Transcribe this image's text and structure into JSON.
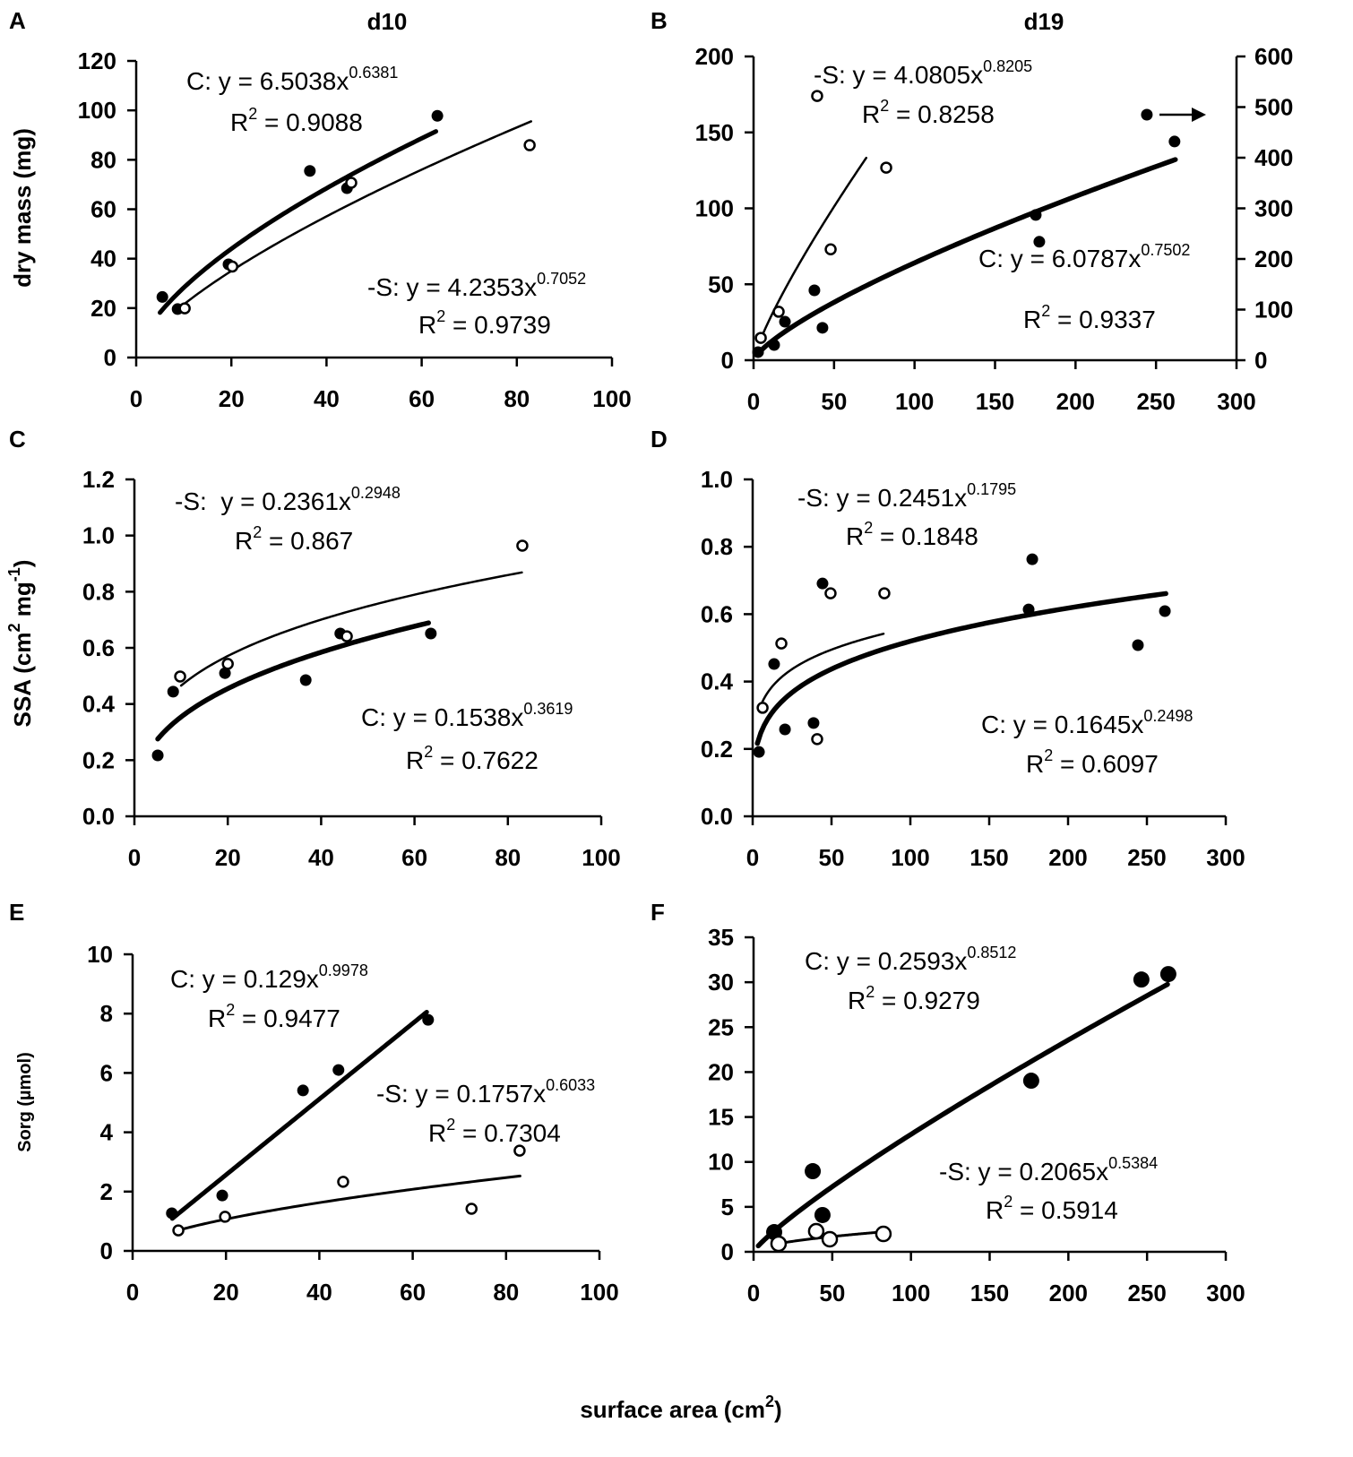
{
  "figure": {
    "xlabel": [
      {
        "text": "surface area (cm"
      },
      {
        "text": "2",
        "sup": true
      },
      {
        "text": ")"
      }
    ],
    "r_symbol": "R",
    "r_sup": "2"
  },
  "chart_data": [
    {
      "panel": "A",
      "title": "d10",
      "type": "scatter",
      "ylabel": [
        {
          "text": "dry mass (mg)"
        }
      ],
      "xlim": [
        0,
        100
      ],
      "ylim": [
        0,
        120
      ],
      "xticks": [
        0,
        20,
        40,
        60,
        80,
        100
      ],
      "xtick_labels": [
        "0",
        "20",
        "40",
        "60",
        "80",
        "100"
      ],
      "yticks": [
        0,
        20,
        40,
        60,
        80,
        100,
        120
      ],
      "ytick_labels": [
        "0",
        "20",
        "40",
        "60",
        "80",
        "100",
        "120"
      ],
      "series": [
        {
          "name": "C",
          "hollow": false,
          "points": [
            [
              5.5,
              24.5
            ],
            [
              8.7,
              19.6
            ],
            [
              19.4,
              37.7
            ],
            [
              36.5,
              75.5
            ],
            [
              44.3,
              68.5
            ],
            [
              63.3,
              97.8
            ]
          ],
          "fit": {
            "a": 6.5038,
            "b": 0.6381,
            "x_range": [
              5,
              63
            ],
            "equation": ": y = 6.5038x",
            "exponent": "0.6381",
            "r2": " = 0.9088"
          }
        },
        {
          "name": "-S",
          "hollow": true,
          "points": [
            [
              10.2,
              19.9
            ],
            [
              20.2,
              36.8
            ],
            [
              45.2,
              70.7
            ],
            [
              82.7,
              85.9
            ]
          ],
          "fit": {
            "a": 4.2353,
            "b": 0.7052,
            "x_range": [
              10,
              83
            ],
            "equation": ": y = 4.2353x",
            "exponent": "0.7052",
            "r2": " = 0.9739"
          }
        }
      ]
    },
    {
      "panel": "B",
      "title": "d19",
      "type": "scatter",
      "xlim": [
        0,
        300
      ],
      "ylim": [
        0,
        200
      ],
      "y2lim": [
        0,
        600
      ],
      "xticks": [
        0,
        50,
        100,
        150,
        200,
        250,
        300
      ],
      "xtick_labels": [
        "0",
        "50",
        "100",
        "150",
        "200",
        "250",
        "300"
      ],
      "yticks": [
        0,
        50,
        100,
        150,
        200
      ],
      "ytick_labels": [
        "0",
        "50",
        "100",
        "150",
        "200"
      ],
      "y2ticks": [
        0,
        100,
        200,
        300,
        400,
        500,
        600
      ],
      "y2tick_labels": [
        "0",
        "100",
        "200",
        "300",
        "400",
        "500",
        "600"
      ],
      "series": [
        {
          "name": "C",
          "hollow": false,
          "right_axis": true,
          "points": [
            [
              2.8,
              16
            ],
            [
              12.8,
              30
            ],
            [
              19.5,
              76
            ],
            [
              37.8,
              138
            ],
            [
              42.8,
              64
            ],
            [
              175.3,
              287
            ],
            [
              177.5,
              234
            ],
            [
              244.3,
              485
            ],
            [
              261.5,
              432
            ]
          ],
          "fit": {
            "a": 6.0787,
            "b": 0.7502,
            "x_range": [
              3,
              262
            ],
            "equation": ": y = 6.0787x",
            "exponent": "0.7502",
            "r2": " = 0.9337"
          }
        },
        {
          "name": "-S",
          "hollow": true,
          "right_axis": false,
          "points": [
            [
              4.5,
              14.7
            ],
            [
              15.6,
              31.9
            ],
            [
              39.5,
              174
            ],
            [
              47.9,
              73
            ],
            [
              82.4,
              126.8
            ]
          ],
          "fit": {
            "a": 4.0805,
            "b": 0.8205,
            "x_range": [
              4,
              70
            ],
            "equation": ": y = 4.0805x",
            "exponent": "0.8205",
            "r2": " = 0.8258"
          }
        }
      ]
    },
    {
      "panel": "C",
      "type": "scatter",
      "ylabel": [
        {
          "text": "SSA (cm"
        },
        {
          "text": "2",
          "sup": true
        },
        {
          "text": " mg"
        },
        {
          "text": "-1",
          "sup": true
        },
        {
          "text": ")"
        }
      ],
      "xlim": [
        0,
        100
      ],
      "ylim": [
        0,
        1.2
      ],
      "xticks": [
        0,
        20,
        40,
        60,
        80,
        100
      ],
      "xtick_labels": [
        "0",
        "20",
        "40",
        "60",
        "80",
        "100"
      ],
      "yticks": [
        0,
        0.2,
        0.4,
        0.6,
        0.8,
        1.0,
        1.2
      ],
      "ytick_labels": [
        "0.0",
        "0.2",
        "0.4",
        "0.6",
        "0.8",
        "1.0",
        "1.2"
      ],
      "series": [
        {
          "name": "C",
          "hollow": false,
          "points": [
            [
              5,
              0.217
            ],
            [
              8.3,
              0.444
            ],
            [
              19.4,
              0.51
            ],
            [
              36.7,
              0.485
            ],
            [
              44.1,
              0.651
            ],
            [
              63.5,
              0.651
            ]
          ],
          "fit": {
            "a": 0.1538,
            "b": 0.3619,
            "x_range": [
              5,
              63
            ],
            "equation": ": y = 0.1538x",
            "exponent": "0.3619",
            "r2": " = 0.7622"
          }
        },
        {
          "name": "-S",
          "hollow": true,
          "points": [
            [
              9.8,
              0.498
            ],
            [
              20,
              0.543
            ],
            [
              45.5,
              0.641
            ],
            [
              83.1,
              0.964
            ]
          ],
          "fit": {
            "a": 0.2361,
            "b": 0.2948,
            "x_range": [
              10,
              83
            ],
            "equation": ":  y = 0.2361x",
            "exponent": "0.2948",
            "r2": " = 0.867"
          }
        }
      ]
    },
    {
      "panel": "D",
      "type": "scatter",
      "xlim": [
        0,
        300
      ],
      "ylim": [
        0,
        1.0
      ],
      "xticks": [
        0,
        50,
        100,
        150,
        200,
        250,
        300
      ],
      "xtick_labels": [
        "0",
        "50",
        "100",
        "150",
        "200",
        "250",
        "300"
      ],
      "yticks": [
        0,
        0.2,
        0.4,
        0.6,
        0.8,
        1.0
      ],
      "ytick_labels": [
        "0.0",
        "0.2",
        "0.4",
        "0.6",
        "0.8",
        "1.0"
      ],
      "series": [
        {
          "name": "C",
          "hollow": false,
          "points": [
            [
              4,
              0.191
            ],
            [
              13.6,
              0.452
            ],
            [
              20.5,
              0.258
            ],
            [
              38.6,
              0.277
            ],
            [
              44.3,
              0.691
            ],
            [
              175,
              0.614
            ],
            [
              177.3,
              0.763
            ],
            [
              244.3,
              0.508
            ],
            [
              261.4,
              0.609
            ]
          ],
          "fit": {
            "a": 0.1645,
            "b": 0.2498,
            "x_range": [
              3,
              262
            ],
            "equation": ": y = 0.1645x",
            "exponent": "0.2498",
            "r2": " = 0.6097"
          }
        },
        {
          "name": "-S",
          "hollow": true,
          "points": [
            [
              6.3,
              0.322
            ],
            [
              18.2,
              0.513
            ],
            [
              40.9,
              0.229
            ],
            [
              49.4,
              0.662
            ],
            [
              83.5,
              0.662
            ]
          ],
          "fit": {
            "a": 0.2451,
            "b": 0.1795,
            "x_range": [
              5,
              83
            ],
            "equation": ": y = 0.2451x",
            "exponent": "0.1795",
            "r2": " = 0.1848"
          }
        }
      ]
    },
    {
      "panel": "E",
      "type": "scatter",
      "ylabel": [
        {
          "text": "Sorg (µmol)"
        }
      ],
      "xlim": [
        0,
        100
      ],
      "ylim": [
        0,
        10
      ],
      "xticks": [
        0,
        20,
        40,
        60,
        80,
        100
      ],
      "xtick_labels": [
        "0",
        "20",
        "40",
        "60",
        "80",
        "100"
      ],
      "yticks": [
        0,
        2,
        4,
        6,
        8,
        10
      ],
      "ytick_labels": [
        "0",
        "2",
        "4",
        "6",
        "8",
        "10"
      ],
      "series": [
        {
          "name": "C",
          "hollow": false,
          "points": [
            [
              8.4,
              1.27
            ],
            [
              19.2,
              1.87
            ],
            [
              36.5,
              5.41
            ],
            [
              44.1,
              6.1
            ],
            [
              63.3,
              7.79
            ]
          ],
          "fit": {
            "a": 0.129,
            "b": 0.9978,
            "x_range": [
              8.5,
              63
            ],
            "equation": ": y = 0.129x",
            "exponent": "0.9978",
            "r2": " = 0.9477"
          }
        },
        {
          "name": "-S",
          "hollow": true,
          "points": [
            [
              9.8,
              0.69
            ],
            [
              19.8,
              1.15
            ],
            [
              45.1,
              2.33
            ],
            [
              72.6,
              1.42
            ],
            [
              82.9,
              3.38
            ]
          ],
          "fit": {
            "a": 0.1757,
            "b": 0.6033,
            "x_range": [
              10,
              83
            ],
            "equation": ": y = 0.1757x",
            "exponent": "0.6033",
            "r2": " = 0.7304"
          }
        }
      ]
    },
    {
      "panel": "F",
      "type": "scatter",
      "xlim": [
        0,
        300
      ],
      "ylim": [
        0,
        35
      ],
      "xticks": [
        0,
        50,
        100,
        150,
        200,
        250,
        300
      ],
      "xtick_labels": [
        "0",
        "50",
        "100",
        "150",
        "200",
        "250",
        "300"
      ],
      "yticks": [
        0,
        5,
        10,
        15,
        20,
        25,
        30,
        35
      ],
      "ytick_labels": [
        "0",
        "5",
        "10",
        "15",
        "20",
        "25",
        "30",
        "35"
      ],
      "series": [
        {
          "name": "C",
          "hollow": false,
          "points": [
            [
              13.1,
              2.19
            ],
            [
              37.6,
              8.97
            ],
            [
              43.8,
              4.09
            ],
            [
              176.4,
              19.04
            ],
            [
              246.4,
              30.3
            ],
            [
              263.5,
              30.9
            ]
          ],
          "fit": {
            "a": 0.2593,
            "b": 0.8512,
            "x_range": [
              3,
              263
            ],
            "equation": ": y = 0.2593x",
            "exponent": "0.8512",
            "r2": " = 0.9279"
          }
        },
        {
          "name": "-S",
          "hollow": true,
          "points": [
            [
              15.9,
              0.9
            ],
            [
              39.8,
              2.29
            ],
            [
              48.4,
              1.4
            ],
            [
              82.5,
              1.99
            ]
          ],
          "fit": {
            "a": 0.2065,
            "b": 0.5384,
            "x_range": [
              16,
              82
            ],
            "equation": ": y = 0.2065x",
            "exponent": "0.5384",
            "r2": " = 0.5914"
          }
        }
      ]
    }
  ]
}
